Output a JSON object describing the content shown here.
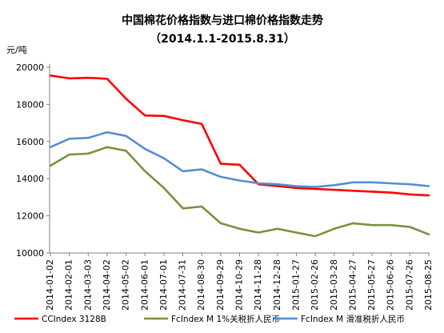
{
  "chart_data": {
    "type": "line",
    "title": "中国棉花价格指数与进口棉价格指数走势",
    "subtitle": "（2014.1.1-2015.8.31）",
    "ylabel": "元/吨",
    "xlabel": "",
    "ylim": [
      10000,
      20000
    ],
    "yticks": [
      10000,
      12000,
      14000,
      16000,
      18000,
      20000
    ],
    "grid": false,
    "legend_position": "bottom",
    "x": [
      "2014-01-02",
      "2014-02-01",
      "2014-03-03",
      "2014-04-02",
      "2014-05-02",
      "2014-06-01",
      "2014-07-01",
      "2014-07-31",
      "2014-08-30",
      "2014-09-29",
      "2014-10-29",
      "2014-11-28",
      "2014-12-28",
      "2015-01-27",
      "2015-02-26",
      "2015-03-28",
      "2015-04-27",
      "2015-05-27",
      "2015-06-26",
      "2015-07-26",
      "2015-08-25"
    ],
    "series": [
      {
        "name": "CCIndex 3128B",
        "color": "#ff0000",
        "values": [
          19550,
          19400,
          19430,
          19380,
          18300,
          17400,
          17380,
          17150,
          16950,
          14800,
          14750,
          13700,
          13600,
          13500,
          13450,
          13400,
          13350,
          13300,
          13250,
          13150,
          13100
        ]
      },
      {
        "name": "FcIndex M 1%关税折人民币",
        "color": "#77933c",
        "values": [
          14700,
          15300,
          15350,
          15700,
          15500,
          14400,
          13500,
          12400,
          12500,
          11600,
          11300,
          11100,
          11300,
          11100,
          10900,
          11300,
          11600,
          11500,
          11500,
          11400,
          11000
        ]
      },
      {
        "name": "FcIndex M 滑准税折人民币",
        "color": "#558ed5",
        "values": [
          15700,
          16150,
          16200,
          16500,
          16300,
          15600,
          15100,
          14400,
          14500,
          14100,
          13900,
          13750,
          13700,
          13600,
          13550,
          13650,
          13800,
          13800,
          13750,
          13700,
          13600
        ]
      }
    ]
  }
}
